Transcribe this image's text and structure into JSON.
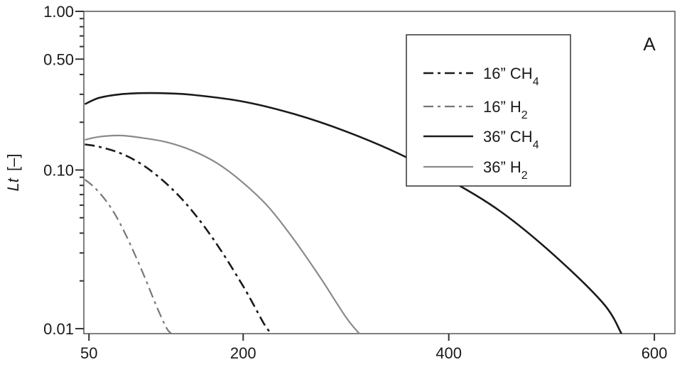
{
  "chart_data": {
    "type": "line",
    "title": "",
    "panel_label": "A",
    "xlabel": "",
    "ylabel": "[–]",
    "ylabel_italic": "Lt",
    "x_scale": "linear",
    "y_scale": "log",
    "xlim": [
      45,
      620
    ],
    "ylim": [
      0.0093,
      1.0
    ],
    "x_ticks": [
      50,
      200,
      400,
      600
    ],
    "x_tick_labels": [
      "50",
      "200",
      "400",
      "600"
    ],
    "y_ticks": [
      0.01,
      0.1,
      0.5,
      1.0
    ],
    "y_tick_labels": [
      "0.01",
      "0.10",
      "0.50",
      "1.00"
    ],
    "grid": false,
    "legend_position": "top-right",
    "series": [
      {
        "name": "16” CH",
        "subscript": "4",
        "color": "#1a1a1a",
        "style": "dashdot",
        "x": [
          46,
          60,
          80,
          100,
          120,
          140,
          160,
          180,
          200,
          210,
          220,
          227
        ],
        "y": [
          0.145,
          0.14,
          0.128,
          0.11,
          0.088,
          0.066,
          0.046,
          0.03,
          0.0185,
          0.0142,
          0.0108,
          0.0093
        ]
      },
      {
        "name": "16” H",
        "subscript": "2",
        "color": "#777777",
        "style": "dashdot",
        "x": [
          46,
          55,
          65,
          75,
          85,
          95,
          105,
          115,
          125,
          130
        ],
        "y": [
          0.087,
          0.078,
          0.066,
          0.053,
          0.04,
          0.029,
          0.0205,
          0.0142,
          0.0102,
          0.0093
        ]
      },
      {
        "name": "36” CH",
        "subscript": "4",
        "color": "#1a1a1a",
        "style": "solid",
        "x": [
          46,
          60,
          80,
          100,
          120,
          150,
          200,
          250,
          300,
          350,
          400,
          450,
          500,
          550,
          568
        ],
        "y": [
          0.26,
          0.285,
          0.3,
          0.305,
          0.305,
          0.298,
          0.27,
          0.225,
          0.175,
          0.128,
          0.087,
          0.055,
          0.03,
          0.0145,
          0.0093
        ]
      },
      {
        "name": "36” H",
        "subscript": "2",
        "color": "#8a8a8a",
        "style": "solid",
        "x": [
          46,
          60,
          80,
          100,
          125,
          150,
          175,
          200,
          225,
          250,
          275,
          300,
          313
        ],
        "y": [
          0.155,
          0.162,
          0.165,
          0.16,
          0.15,
          0.133,
          0.11,
          0.083,
          0.058,
          0.036,
          0.021,
          0.0118,
          0.0093
        ]
      }
    ]
  }
}
